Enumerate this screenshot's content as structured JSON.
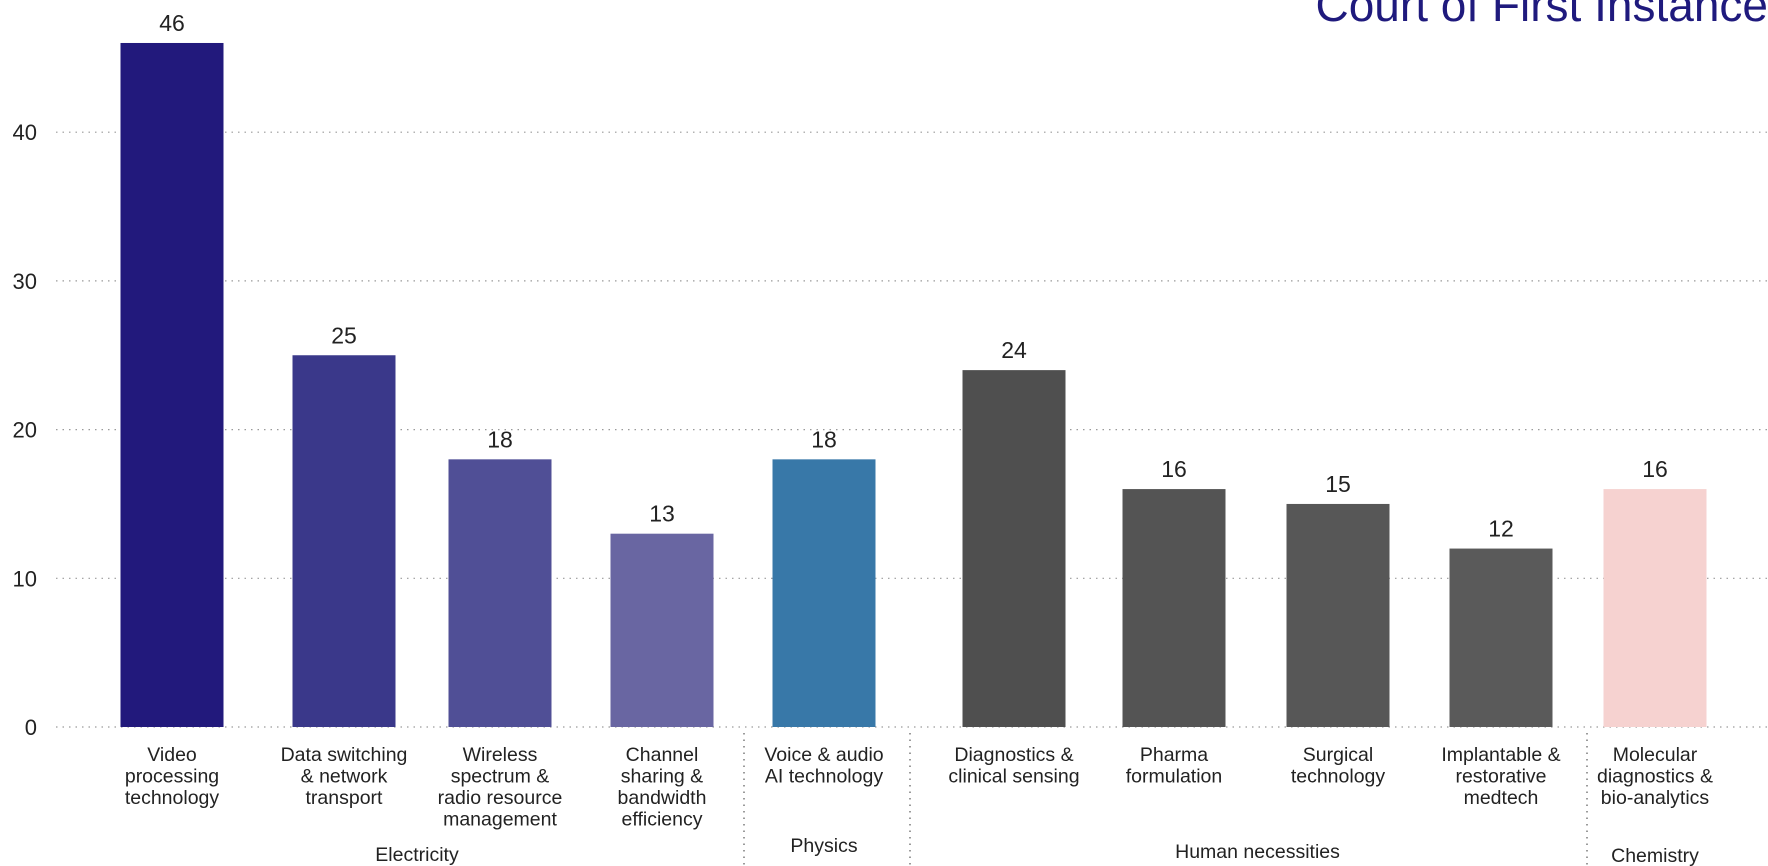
{
  "chart_data": {
    "type": "bar",
    "title": "Court of First Instance",
    "xlabel": "",
    "ylabel": "",
    "ylim": [
      0,
      46
    ],
    "yticks": [
      0,
      10,
      20,
      30,
      40
    ],
    "grid": true,
    "bars": [
      {
        "label": [
          "Video",
          "processing",
          "technology"
        ],
        "value": 46,
        "color": "#22197c"
      },
      {
        "label": [
          "Data switching",
          "& network",
          "transport"
        ],
        "value": 25,
        "color": "#3a388a"
      },
      {
        "label": [
          "Wireless",
          "spectrum &",
          "radio resource",
          "management"
        ],
        "value": 18,
        "color": "#504f96"
      },
      {
        "label": [
          "Channel",
          "sharing &",
          "bandwidth",
          "efficiency"
        ],
        "value": 13,
        "color": "#6966a2"
      },
      {
        "label": [
          "Voice & audio",
          "AI technology"
        ],
        "value": 18,
        "color": "#3878a8"
      },
      {
        "label": [
          "Diagnostics &",
          "clinical sensing"
        ],
        "value": 24,
        "color": "#4f4f4f"
      },
      {
        "label": [
          "Pharma",
          "formulation"
        ],
        "value": 16,
        "color": "#545454"
      },
      {
        "label": [
          "Surgical",
          "technology"
        ],
        "value": 15,
        "color": "#575757"
      },
      {
        "label": [
          "Implantable &",
          "restorative",
          "medtech"
        ],
        "value": 12,
        "color": "#5a5a5a"
      },
      {
        "label": [
          "Molecular",
          "diagnostics &",
          "bio-analytics"
        ],
        "value": 16,
        "color": "#f6d2d0"
      }
    ],
    "groups": [
      {
        "name": "Electricity",
        "start": 0,
        "end": 3
      },
      {
        "name": "Physics",
        "start": 4,
        "end": 4
      },
      {
        "name": "Human necessities",
        "start": 5,
        "end": 8
      },
      {
        "name": "Chemistry",
        "start": 9,
        "end": 9
      }
    ]
  }
}
